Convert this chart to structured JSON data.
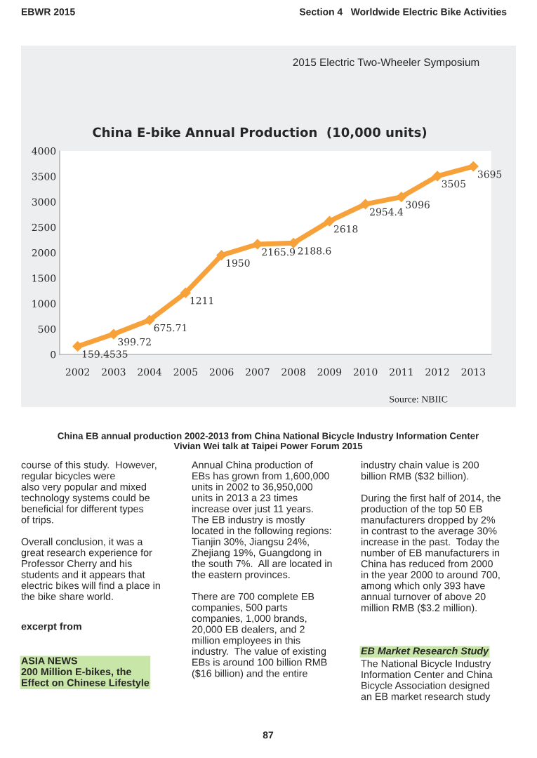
{
  "chart_data": {
    "type": "line",
    "title": "China E-bike Annual Production  (10,000 units)",
    "categories": [
      "2002",
      "2003",
      "2004",
      "2005",
      "2006",
      "2007",
      "2008",
      "2009",
      "2010",
      "2011",
      "2012",
      "2013"
    ],
    "series": [
      {
        "color": "#f7a13a",
        "values": [
          159.4535,
          399.72,
          675.71,
          1211,
          1950,
          2165.9,
          2188.6,
          2618,
          2954.4,
          3096,
          3505,
          3695
        ]
      }
    ],
    "ylim": [
      0,
      4000
    ],
    "yticks": [
      0,
      500,
      1000,
      1500,
      2000,
      2500,
      3000,
      3500,
      4000
    ],
    "grid": false,
    "marker": "diamond",
    "line_style": "solid",
    "data_labels": true,
    "annotations": [
      "EBWR 2015",
      "Section 4   Worldwide Electric Bike Activities",
      "2015 Electric Two-Wheeler Symposium",
      "Source: NBIIC",
      "China EB annual production 2002-2013 from China National Bicycle Industry Information Center\nVivian Wei talk at Taipei Power Forum 2015",
      "course of this study.  However,\nregular bicycles were\nalso very popular and mixed\ntechnology systems could be\nbeneficial for different types\nof trips.\n\nOverall conclusion, it was a\ngreat research experience for\nProfessor Cherry and his\nstudents and it appears that\nelectric bikes will find a place in\nthe bike share world.",
      "excerpt from",
      "ASIA NEWS\n200 Million E-bikes, the\nEffect on Chinese Lifestyle",
      "Annual China production of\nEBs has grown from 1,600,000\nunits in 2002 to 36,950,000\nunits in 2013 a 23 times\nincrease over just 11 years.\nThe EB industry is mostly\nlocated in the following regions:\nTianjin 30%, Jiangsu 24%,\nZhejiang 19%, Guangdong in\nthe south 7%.  All are located in\nthe eastern provinces.\n\nThere are 700 complete EB\ncompanies, 500 parts\ncompanies, 1,000 brands,\n20,000 EB dealers, and 2\nmillion employees in this\nindustry.  The value of existing\nEBs is around 100 billion RMB\n($16 billion) and the entire",
      "industry chain value is 200\nbillion RMB ($32 billion).\n\nDuring the first half of 2014, the\nproduction of the top 50 EB\nmanufacturers dropped by 2%\nin contrast to the average 30%\nincrease in the past.  Today the\nnumber of EB manufacturers in\nChina has reduced from 2000\nin the year 2000 to around 700,\namong which only 393 have\nannual turnover of above 20\nmillion RMB ($3.2 million).",
      "EB Market Research Study",
      "The National Bicycle Industry\nInformation Center and China\nBicycle Association designed\nan EB market research study",
      "87"
    ]
  }
}
